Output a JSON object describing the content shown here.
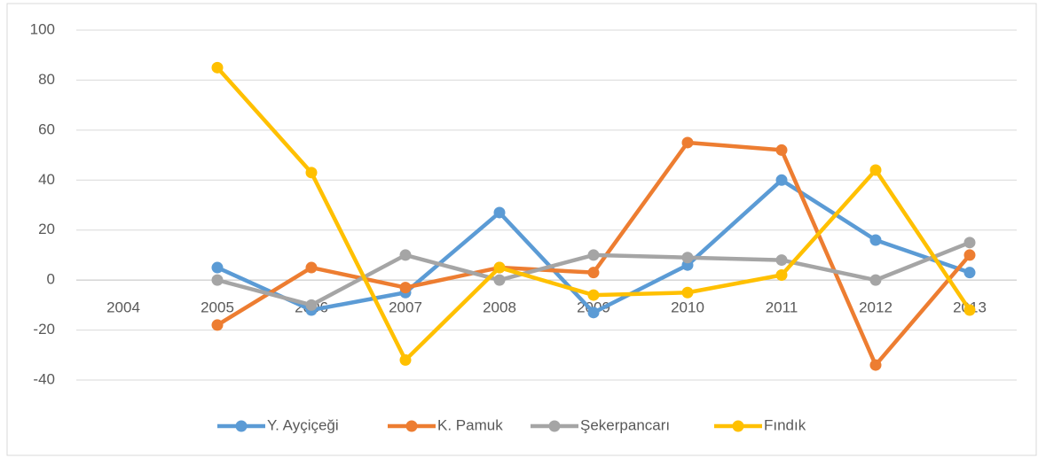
{
  "chart_data": {
    "type": "line",
    "categories": [
      "2004",
      "2005",
      "2006",
      "2007",
      "2008",
      "2009",
      "2010",
      "2011",
      "2012",
      "2013"
    ],
    "series": [
      {
        "name": "Y. Ayçiçeği",
        "color": "#5b9bd5",
        "values": [
          null,
          5,
          -12,
          -5,
          27,
          -13,
          6,
          40,
          16,
          3
        ]
      },
      {
        "name": "K. Pamuk",
        "color": "#ed7d31",
        "values": [
          null,
          -18,
          5,
          -3,
          5,
          3,
          55,
          52,
          -34,
          10
        ]
      },
      {
        "name": "Şekerpancarı",
        "color": "#a5a5a5",
        "values": [
          null,
          0,
          -10,
          10,
          0,
          10,
          9,
          8,
          0,
          15
        ]
      },
      {
        "name": "Fındık",
        "color": "#ffc000",
        "values": [
          null,
          85,
          43,
          -32,
          5,
          -6,
          -5,
          2,
          44,
          -12
        ]
      }
    ],
    "ylim": [
      -40,
      100
    ],
    "yticks": [
      -40,
      -20,
      0,
      20,
      40,
      60,
      80,
      100
    ],
    "grid": true,
    "legend": "bottom"
  }
}
